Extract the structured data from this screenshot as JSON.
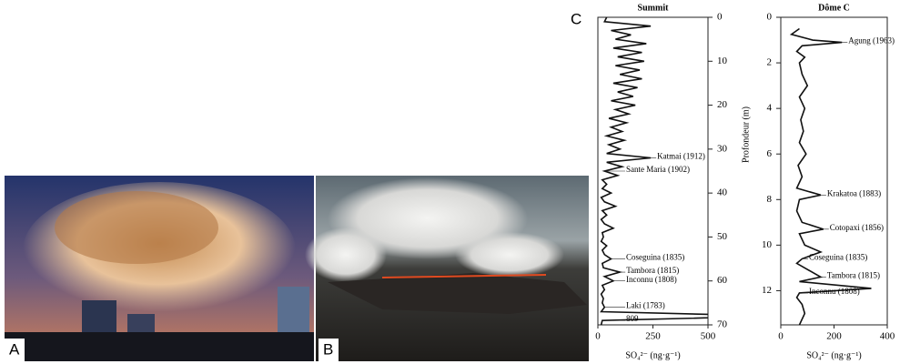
{
  "panel_labels": [
    "A",
    "B",
    "C"
  ],
  "chart_data": [
    {
      "type": "line",
      "title": "Summit",
      "x_label": "SO₄²⁻ (ng·g⁻¹)",
      "x": [
        0,
        1,
        2,
        3,
        4,
        5,
        6,
        7,
        8,
        9,
        10,
        11,
        12,
        13,
        14,
        15,
        16,
        17,
        18,
        19,
        20,
        21,
        22,
        23,
        24,
        25,
        26,
        27,
        28,
        29,
        30,
        31,
        32,
        33,
        34,
        35,
        36,
        37,
        38,
        39,
        40,
        41,
        42,
        43,
        44,
        45,
        46,
        47,
        48,
        49,
        50,
        51,
        52,
        53,
        54,
        55,
        56,
        57,
        58,
        59,
        60,
        61,
        62,
        63,
        64,
        65,
        66,
        67,
        68,
        69,
        70
      ],
      "values": [
        40,
        30,
        240,
        60,
        150,
        80,
        220,
        70,
        200,
        90,
        210,
        80,
        190,
        100,
        200,
        70,
        180,
        90,
        160,
        60,
        170,
        80,
        140,
        50,
        130,
        60,
        110,
        40,
        120,
        50,
        100,
        40,
        240,
        40,
        110,
        30,
        90,
        20,
        40,
        20,
        60,
        15,
        30,
        80,
        20,
        40,
        15,
        30,
        70,
        20,
        25,
        15,
        40,
        20,
        30,
        60,
        20,
        25,
        100,
        30,
        70,
        20,
        30,
        15,
        25,
        20,
        30,
        15,
        809,
        20,
        15
      ],
      "color": "#111111",
      "xlim": [
        0,
        70
      ],
      "xticks": [
        0,
        10,
        20,
        30,
        40,
        50,
        60,
        70
      ],
      "ylim": [
        0,
        500
      ],
      "yticks": [
        0,
        250,
        500
      ],
      "annotations": [
        {
          "text": "Katmai (1912)",
          "x": 32
        },
        {
          "text": "Sante Maria (1902)",
          "x": 35
        },
        {
          "text": "Coseguina (1835)",
          "x": 55
        },
        {
          "text": "Tambora (1815)",
          "x": 58
        },
        {
          "text": "Inconnu (1808)",
          "x": 60
        },
        {
          "text": "Laki (1783)",
          "x": 66
        },
        {
          "text": "809",
          "x": 69
        }
      ]
    },
    {
      "type": "line",
      "title": "Dôme C",
      "x_label": "SO₄²⁻ (ng·g⁻¹)",
      "y_label": "Profondeur (m)",
      "x": [
        0.5,
        0.75,
        1.0,
        1.1,
        1.25,
        1.5,
        1.75,
        2,
        2.5,
        3,
        3.5,
        4,
        4.5,
        5,
        5.5,
        6,
        6.5,
        7,
        7.5,
        7.8,
        8,
        8.5,
        9,
        9.3,
        9.5,
        10,
        10.3,
        10.6,
        10.8,
        11,
        11.4,
        11.6,
        11.9,
        12.1,
        12.3,
        12.6,
        13,
        13.5
      ],
      "values": [
        70,
        40,
        120,
        230,
        80,
        60,
        90,
        70,
        80,
        100,
        70,
        90,
        75,
        85,
        70,
        95,
        65,
        80,
        60,
        150,
        70,
        60,
        80,
        160,
        70,
        90,
        150,
        80,
        60,
        90,
        150,
        70,
        340,
        70,
        60,
        80,
        90,
        70
      ],
      "color": "#111111",
      "xlim": [
        0,
        13.5
      ],
      "xticks": [
        0,
        2,
        4,
        6,
        8,
        10,
        12
      ],
      "ylim": [
        0,
        400
      ],
      "yticks": [
        0,
        200,
        400
      ],
      "annotations": [
        {
          "text": "Agung (1963)",
          "x": 1.1
        },
        {
          "text": "Krakatoa (1883)",
          "x": 7.8
        },
        {
          "text": "Cotopaxi (1856)",
          "x": 9.3
        },
        {
          "text": "Coseguina (1835)",
          "x": 10.6
        },
        {
          "text": "Tambora (1815)",
          "x": 11.4
        },
        {
          "text": "Inconnu (1808)",
          "x": 12.1
        }
      ]
    }
  ]
}
